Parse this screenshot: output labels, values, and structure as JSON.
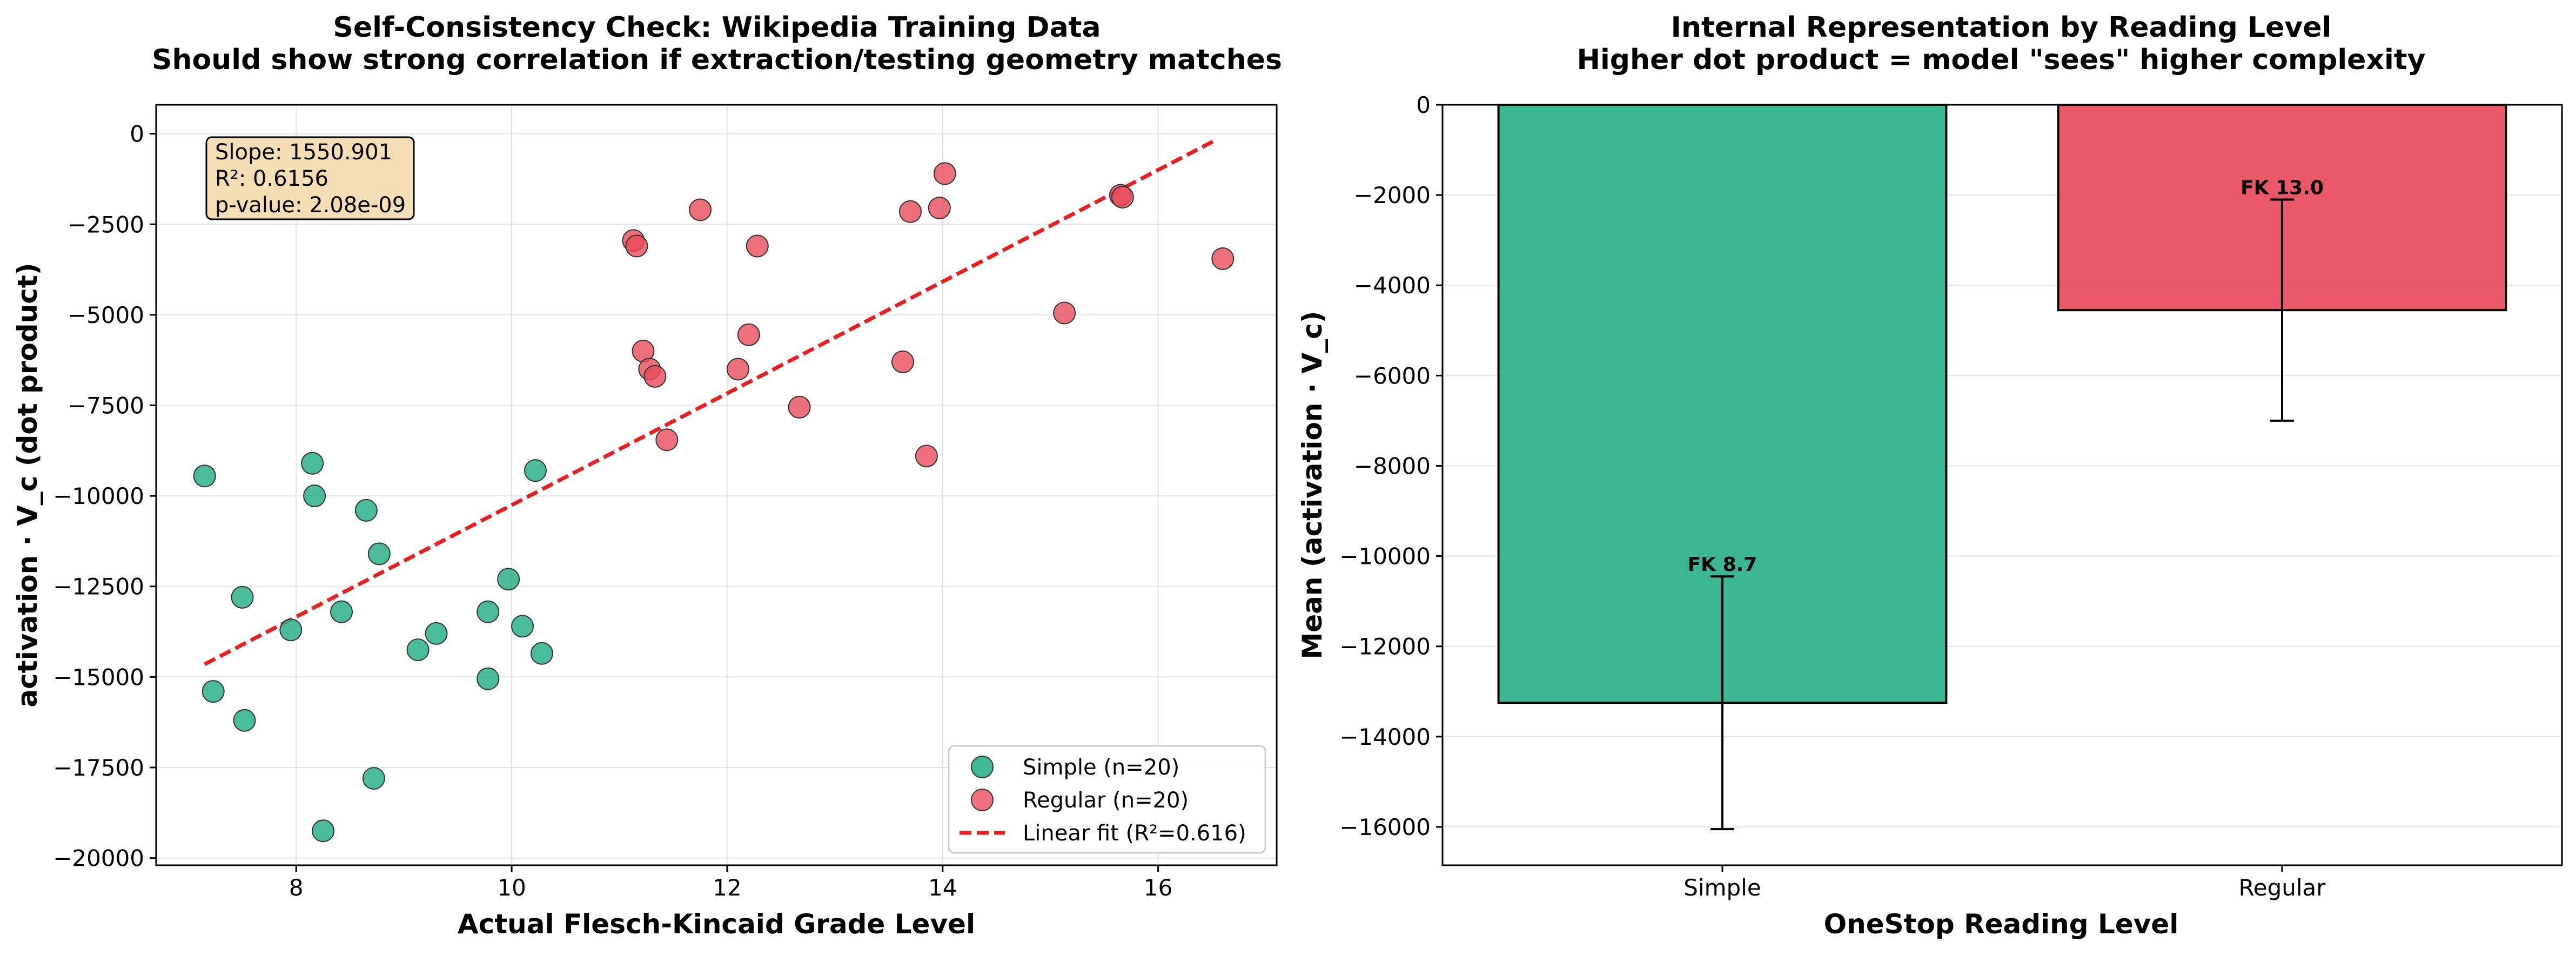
{
  "colors": {
    "simple": "#2ab08a",
    "regular": "#e84b5a",
    "fit": "#ee1c1c",
    "stats_box_fill": "#f5deb3",
    "grid": "#e4e4e4"
  },
  "chart_data": [
    {
      "type": "scatter",
      "title_line1": "Self-Consistency Check: Wikipedia Training Data",
      "title_line2": "Should show strong correlation if extraction/testing geometry matches",
      "xlabel": "Actual Flesch-Kincaid Grade Level",
      "ylabel": "activation · V_c (dot product)",
      "xlim": [
        6.7,
        17.1
      ],
      "ylim": [
        -20200,
        800
      ],
      "xticks": [
        8,
        10,
        12,
        14,
        16
      ],
      "yticks": [
        0,
        -2500,
        -5000,
        -7500,
        -10000,
        -12500,
        -15000,
        -17500,
        -20000
      ],
      "xtick_labels": [
        "8",
        "10",
        "12",
        "14",
        "16"
      ],
      "ytick_labels": [
        "0",
        "−2500",
        "−5000",
        "−7500",
        "−10000",
        "−12500",
        "−15000",
        "−17500",
        "−20000"
      ],
      "grid": true,
      "legend_position": "bottom-right",
      "stats": {
        "slope": "Slope: 1550.901",
        "r2": "R²: 0.6156",
        "pvalue": "p-value: 2.08e-09"
      },
      "series": [
        {
          "name": "Simple (n=20)",
          "color": "#2ab08a",
          "points": [
            [
              7.15,
              -9450
            ],
            [
              7.23,
              -15400
            ],
            [
              7.5,
              -12800
            ],
            [
              7.52,
              -16200
            ],
            [
              7.95,
              -13700
            ],
            [
              8.15,
              -9100
            ],
            [
              8.17,
              -10000
            ],
            [
              8.25,
              -19250
            ],
            [
              8.42,
              -13200
            ],
            [
              8.65,
              -10400
            ],
            [
              8.72,
              -17800
            ],
            [
              8.77,
              -11600
            ],
            [
              9.13,
              -14250
            ],
            [
              9.3,
              -13800
            ],
            [
              9.78,
              -13200
            ],
            [
              9.78,
              -15050
            ],
            [
              9.97,
              -12300
            ],
            [
              10.1,
              -13600
            ],
            [
              10.22,
              -9300
            ],
            [
              10.28,
              -14350
            ]
          ]
        },
        {
          "name": "Regular (n=20)",
          "color": "#e84b5a",
          "points": [
            [
              11.13,
              -2950
            ],
            [
              11.16,
              -3100
            ],
            [
              11.22,
              -6000
            ],
            [
              11.28,
              -6500
            ],
            [
              11.33,
              -6700
            ],
            [
              11.44,
              -8450
            ],
            [
              11.75,
              -2100
            ],
            [
              12.1,
              -6500
            ],
            [
              12.2,
              -5550
            ],
            [
              12.28,
              -3100
            ],
            [
              12.67,
              -7550
            ],
            [
              13.63,
              -6300
            ],
            [
              13.7,
              -2150
            ],
            [
              13.85,
              -8900
            ],
            [
              13.97,
              -2050
            ],
            [
              14.02,
              -1100
            ],
            [
              15.13,
              -4950
            ],
            [
              15.65,
              -1700
            ],
            [
              15.67,
              -1750
            ],
            [
              16.6,
              -3450
            ]
          ]
        }
      ],
      "fit": {
        "name": "Linear fit (R²=0.616)",
        "x": [
          7.15,
          16.55
        ],
        "y": [
          -14650,
          -150
        ]
      }
    },
    {
      "type": "bar",
      "title_line1": "Internal Representation by Reading Level",
      "title_line2": "Higher dot product = model \"sees\" higher complexity",
      "xlabel": "OneStop Reading Level",
      "ylabel": "Mean (activation · V_c)",
      "categories": [
        "Simple",
        "Regular"
      ],
      "values": [
        -13250,
        -4550
      ],
      "errors": [
        2800,
        2450
      ],
      "bar_colors": [
        "#2ab08a",
        "#e84b5a"
      ],
      "bar_labels": [
        "FK 8.7",
        "FK 13.0"
      ],
      "ylim": [
        -16850,
        0
      ],
      "yticks": [
        0,
        -2000,
        -4000,
        -6000,
        -8000,
        -10000,
        -12000,
        -14000,
        -16000
      ],
      "ytick_labels": [
        "0",
        "−2000",
        "−4000",
        "−6000",
        "−8000",
        "−10000",
        "−12000",
        "−14000",
        "−16000"
      ],
      "grid": true
    }
  ]
}
